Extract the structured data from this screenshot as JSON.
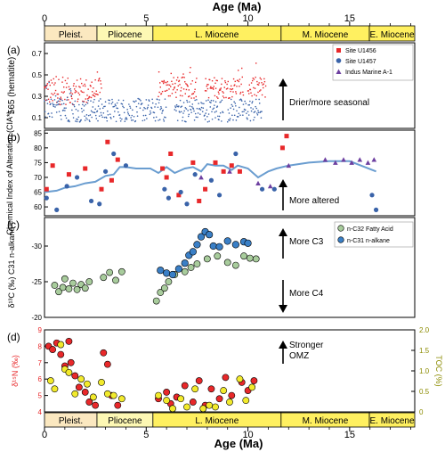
{
  "figure": {
    "age_axis_label": "Age (Ma)",
    "age_ticks": [
      0,
      5,
      10,
      15
    ],
    "age_range": [
      0,
      18.2
    ],
    "epochs": [
      {
        "label": "Pleist.",
        "start": 0,
        "end": 2.58,
        "color": "#fbe8c0"
      },
      {
        "label": "Pliocene",
        "start": 2.58,
        "end": 5.33,
        "color": "#fdf8b4"
      },
      {
        "label": "L. Miocene",
        "start": 5.33,
        "end": 11.63,
        "color": "#fff060"
      },
      {
        "label": "M. Miocene",
        "start": 11.63,
        "end": 15.97,
        "color": "#fff060"
      },
      {
        "label": "E. Miocene",
        "start": 15.97,
        "end": 18.2,
        "color": "#fff060"
      }
    ],
    "colors": {
      "red": "#e8282a",
      "blue": "#3a63a9",
      "purple": "#6d3fa0",
      "green": "#a8cc9c",
      "midblue": "#3a7fc6",
      "yellow": "#f2ea2c",
      "line": "#6a9dd0",
      "olive": "#8b8b00"
    }
  },
  "chart_data": [
    {
      "panel": "(a)",
      "type": "scatter",
      "ylabel": "565 (hematite)",
      "yticks": [
        0.1,
        0.3,
        0.5,
        0.7
      ],
      "ylim": [
        0,
        0.8
      ],
      "annotation": "Drier/more seasonal",
      "series": [
        {
          "name": "Site U1456",
          "marker": "square",
          "color": "#e8282a"
        },
        {
          "name": "Site U1457",
          "marker": "circle",
          "color": "#3a63a9"
        },
        {
          "name": "Indus Marine A-1",
          "marker": "triangle",
          "color": "#6d3fa0"
        }
      ],
      "u1456_segments": [
        [
          0.0,
          2.8
        ],
        [
          5.6,
          7.5
        ],
        [
          7.9,
          9.8
        ],
        [
          10.0,
          10.9
        ]
      ],
      "u1457_segments": [
        [
          0.0,
          6.0
        ],
        [
          6.4,
          8.8
        ],
        [
          9.0,
          10.7
        ]
      ]
    },
    {
      "panel": "(b)",
      "type": "scatter",
      "ylabel": "Chemical Index of Alteration (CIA*)",
      "yticks": [
        60,
        65,
        70,
        75,
        80,
        85
      ],
      "ylim": [
        57,
        86
      ],
      "annotation": "More altered",
      "u1456": [
        [
          0.1,
          66
        ],
        [
          0.4,
          74
        ],
        [
          1.2,
          71
        ],
        [
          2.0,
          73
        ],
        [
          2.8,
          66
        ],
        [
          3.1,
          82
        ],
        [
          3.3,
          69
        ],
        [
          3.6,
          76
        ],
        [
          5.8,
          73
        ],
        [
          6.0,
          70
        ],
        [
          6.2,
          78
        ],
        [
          6.6,
          64
        ],
        [
          7.3,
          75
        ],
        [
          7.6,
          62
        ],
        [
          7.9,
          66
        ],
        [
          8.4,
          75
        ],
        [
          8.8,
          72
        ],
        [
          9.2,
          74
        ],
        [
          9.6,
          72
        ],
        [
          11.7,
          80
        ],
        [
          11.9,
          84
        ]
      ],
      "u1457": [
        [
          0.1,
          63
        ],
        [
          0.6,
          59
        ],
        [
          1.1,
          67
        ],
        [
          1.6,
          70
        ],
        [
          2.3,
          62
        ],
        [
          2.7,
          61
        ],
        [
          3.0,
          72
        ],
        [
          3.4,
          78
        ],
        [
          4.0,
          74
        ],
        [
          5.9,
          66
        ],
        [
          6.1,
          63
        ],
        [
          6.7,
          65
        ],
        [
          7.0,
          61
        ],
        [
          7.4,
          71
        ],
        [
          8.2,
          69
        ],
        [
          8.6,
          64
        ],
        [
          9.4,
          78
        ],
        [
          10.7,
          66
        ],
        [
          11.3,
          66
        ],
        [
          16.1,
          64
        ],
        [
          16.3,
          59
        ]
      ],
      "a1": [
        [
          7.7,
          70
        ],
        [
          9.1,
          72
        ],
        [
          10.5,
          68
        ],
        [
          11.1,
          67
        ],
        [
          12.0,
          74
        ],
        [
          13.8,
          76
        ],
        [
          14.3,
          75
        ],
        [
          14.7,
          76
        ],
        [
          15.1,
          75
        ],
        [
          15.5,
          76
        ],
        [
          15.9,
          75
        ],
        [
          16.2,
          76
        ]
      ],
      "trend": [
        [
          0.0,
          65
        ],
        [
          0.6,
          65.5
        ],
        [
          1.0,
          66.5
        ],
        [
          1.5,
          67
        ],
        [
          2.0,
          68
        ],
        [
          2.5,
          68.5
        ],
        [
          3.0,
          70.5
        ],
        [
          3.4,
          71
        ],
        [
          3.7,
          73.5
        ],
        [
          4.0,
          73.5
        ],
        [
          4.5,
          73
        ],
        [
          5.2,
          73
        ],
        [
          5.6,
          71.5
        ],
        [
          6.0,
          73.5
        ],
        [
          6.4,
          71.5
        ],
        [
          6.9,
          73
        ],
        [
          7.3,
          73.5
        ],
        [
          7.7,
          72
        ],
        [
          8.0,
          74.5
        ],
        [
          8.4,
          74
        ],
        [
          8.8,
          74
        ],
        [
          9.2,
          72.5
        ],
        [
          9.5,
          74
        ],
        [
          10.0,
          73
        ],
        [
          10.5,
          70
        ],
        [
          11.0,
          72
        ],
        [
          11.4,
          73
        ],
        [
          12.0,
          74
        ],
        [
          13.0,
          75
        ],
        [
          14.0,
          75.5
        ],
        [
          15.0,
          75.5
        ],
        [
          16.3,
          72
        ]
      ]
    },
    {
      "panel": "(c)",
      "type": "scatter",
      "ylabel": "δ¹³C (‰) C31 n-alkane",
      "yticks": [
        -20,
        -25,
        -30
      ],
      "ylim": [
        -34,
        -20
      ],
      "annotation_top": "More C3",
      "annotation_bottom": "More C4",
      "legend": [
        "n-C32 Fatty Acid",
        "n-C31 n-alkane"
      ],
      "c32": [
        [
          0.5,
          -24.5
        ],
        [
          0.7,
          -23.6
        ],
        [
          0.9,
          -24.2
        ],
        [
          1.0,
          -25.4
        ],
        [
          1.2,
          -24.0
        ],
        [
          1.4,
          -24.8
        ],
        [
          1.6,
          -23.9
        ],
        [
          1.8,
          -24.6
        ],
        [
          2.0,
          -24.1
        ],
        [
          2.2,
          -25.0
        ],
        [
          2.9,
          -25.6
        ],
        [
          3.2,
          -26.3
        ],
        [
          3.5,
          -25.2
        ],
        [
          3.8,
          -26.4
        ],
        [
          5.5,
          -22.3
        ],
        [
          5.7,
          -23.5
        ],
        [
          5.9,
          -24.1
        ],
        [
          6.1,
          -25.0
        ],
        [
          6.4,
          -26.0
        ],
        [
          6.9,
          -26.4
        ],
        [
          7.2,
          -27.0
        ],
        [
          7.5,
          -27.5
        ],
        [
          8.0,
          -28.2
        ],
        [
          8.5,
          -28.6
        ],
        [
          9.0,
          -27.7
        ],
        [
          9.4,
          -27.3
        ],
        [
          9.8,
          -28.6
        ],
        [
          10.1,
          -28.3
        ],
        [
          10.4,
          -28.2
        ]
      ],
      "c31": [
        [
          5.7,
          -26.6
        ],
        [
          6.0,
          -26.2
        ],
        [
          6.3,
          -26.0
        ],
        [
          6.6,
          -26.8
        ],
        [
          6.9,
          -27.6
        ],
        [
          7.1,
          -28.7
        ],
        [
          7.3,
          -29.2
        ],
        [
          7.5,
          -30.2
        ],
        [
          7.7,
          -31.3
        ],
        [
          7.9,
          -32.0
        ],
        [
          8.1,
          -31.6
        ],
        [
          8.3,
          -30.0
        ],
        [
          8.6,
          -29.9
        ],
        [
          9.0,
          -30.7
        ],
        [
          9.4,
          -30.2
        ],
        [
          9.8,
          -30.6
        ],
        [
          10.0,
          -30.4
        ]
      ]
    },
    {
      "panel": "(d)",
      "type": "scatter",
      "ylabel": "δ¹⁵N (‰)",
      "ylabel_right": "TOC (%)",
      "yticks": [
        4,
        5,
        6,
        7,
        8,
        9
      ],
      "yticks_right": [
        "0",
        "0.5",
        "1.0",
        "1.5",
        "2.0"
      ],
      "ylim": [
        4,
        9
      ],
      "annotation": "Stronger OMZ",
      "d15n": [
        [
          0.2,
          8.0
        ],
        [
          0.4,
          7.8
        ],
        [
          0.6,
          8.2
        ],
        [
          0.8,
          7.5
        ],
        [
          1.0,
          6.8
        ],
        [
          1.2,
          8.3
        ],
        [
          1.3,
          7.0
        ],
        [
          1.5,
          6.2
        ],
        [
          1.7,
          5.5
        ],
        [
          2.0,
          5.2
        ],
        [
          2.2,
          4.6
        ],
        [
          2.5,
          4.4
        ],
        [
          2.9,
          7.6
        ],
        [
          3.1,
          6.9
        ],
        [
          3.3,
          5.0
        ],
        [
          3.6,
          4.4
        ],
        [
          5.6,
          4.8
        ],
        [
          6.0,
          5.2
        ],
        [
          6.2,
          4.5
        ],
        [
          6.5,
          4.9
        ],
        [
          6.9,
          5.6
        ],
        [
          7.3,
          4.6
        ],
        [
          7.6,
          5.9
        ],
        [
          7.9,
          4.4
        ],
        [
          8.2,
          5.4
        ],
        [
          8.6,
          4.8
        ],
        [
          8.9,
          6.1
        ],
        [
          9.2,
          5.0
        ],
        [
          9.7,
          5.8
        ],
        [
          10.0,
          5.3
        ],
        [
          10.3,
          5.9
        ]
      ],
      "toc": [
        [
          0.3,
          5.9
        ],
        [
          0.5,
          5.4
        ],
        [
          0.8,
          8.1
        ],
        [
          1.0,
          6.6
        ],
        [
          1.2,
          6.4
        ],
        [
          1.5,
          5.1
        ],
        [
          1.8,
          6.0
        ],
        [
          2.1,
          5.7
        ],
        [
          2.4,
          4.9
        ],
        [
          2.8,
          5.8
        ],
        [
          3.1,
          5.1
        ],
        [
          3.4,
          5.0
        ],
        [
          3.8,
          4.8
        ],
        [
          5.6,
          5.0
        ],
        [
          6.0,
          4.7
        ],
        [
          6.3,
          4.2
        ],
        [
          6.7,
          4.8
        ],
        [
          7.0,
          4.3
        ],
        [
          7.4,
          5.4
        ],
        [
          7.8,
          4.2
        ],
        [
          8.1,
          4.4
        ],
        [
          8.4,
          4.3
        ],
        [
          8.8,
          5.3
        ],
        [
          9.1,
          4.6
        ],
        [
          9.6,
          6.0
        ],
        [
          9.9,
          4.7
        ],
        [
          10.2,
          5.5
        ]
      ]
    }
  ]
}
